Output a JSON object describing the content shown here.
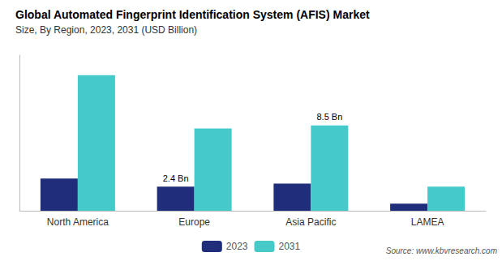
{
  "chart_data": {
    "type": "bar",
    "title": "Global Automated Fingerprint Identification System (AFIS) Market",
    "subtitle": "Size, By Region, 2023, 2031 (USD Billion)",
    "categories": [
      "North America",
      "Europe",
      "Asia Pacific",
      "LAMEA"
    ],
    "series": [
      {
        "name": "2023",
        "color": "#1f2d7b",
        "values": [
          3.2,
          2.4,
          2.7,
          0.7
        ]
      },
      {
        "name": "2031",
        "color": "#45c9c9",
        "values": [
          13.5,
          8.2,
          8.5,
          2.4
        ]
      }
    ],
    "annotations": [
      {
        "text": "2.4 Bn",
        "series": "2023",
        "category": "Europe"
      },
      {
        "text": "8.5 Bn",
        "series": "2031",
        "category": "Asia Pacific"
      }
    ],
    "source": "Source: www.kbvresearch.com",
    "ylim": [
      0,
      15.5
    ],
    "grid": false,
    "legend": "bottom",
    "tick_labels": "x"
  }
}
